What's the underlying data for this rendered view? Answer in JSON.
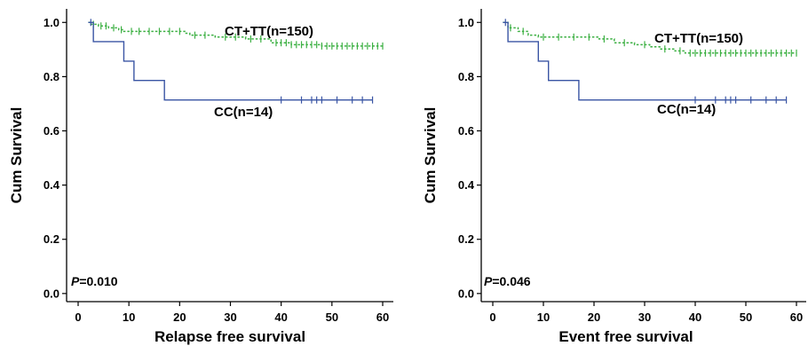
{
  "chart_data": [
    {
      "type": "line",
      "xlabel": "Relapse free survival",
      "ylabel": "Cum Survival",
      "xlim": [
        -2,
        62
      ],
      "ylim": [
        -0.03,
        1.05
      ],
      "xticks": [
        0,
        10,
        20,
        30,
        40,
        50,
        60
      ],
      "yticks": [
        0.0,
        0.2,
        0.4,
        0.6,
        0.8,
        1.0
      ],
      "annotation": {
        "p_label": "P",
        "p_value": "=0.010"
      },
      "series": [
        {
          "name": "CT+TT(n=150)",
          "color": "#3cb043",
          "dash": true,
          "steps": [
            [
              2,
              1.0
            ],
            [
              2.5,
              0.993
            ],
            [
              4,
              0.987
            ],
            [
              6,
              0.98
            ],
            [
              8,
              0.973
            ],
            [
              9,
              0.967
            ],
            [
              21,
              0.96
            ],
            [
              22,
              0.953
            ],
            [
              27,
              0.946
            ],
            [
              33,
              0.939
            ],
            [
              38,
              0.925
            ],
            [
              42,
              0.918
            ],
            [
              48,
              0.913
            ]
          ],
          "end_x": 60,
          "censor": [
            3,
            4.5,
            5.5,
            7,
            8.5,
            10.5,
            12,
            14,
            16,
            18,
            20,
            23,
            25,
            29,
            31,
            34,
            36,
            39,
            40,
            41,
            42,
            43,
            44,
            45,
            46,
            47,
            48,
            49,
            50,
            51,
            52,
            53,
            54,
            55,
            56,
            57,
            58,
            59,
            60
          ]
        },
        {
          "name": "CC(n=14)",
          "color": "#3a55a4",
          "dash": false,
          "steps": [
            [
              2,
              1.0
            ],
            [
              3,
              0.929
            ],
            [
              9,
              0.857
            ],
            [
              11,
              0.786
            ],
            [
              17,
              0.714
            ]
          ],
          "end_x": 58,
          "censor": [
            2.5,
            40,
            44,
            46,
            47,
            48,
            51,
            54,
            56,
            58
          ]
        }
      ]
    },
    {
      "type": "line",
      "xlabel": "Event free survival",
      "ylabel": "Cum Survival",
      "xlim": [
        -2,
        62
      ],
      "ylim": [
        -0.03,
        1.05
      ],
      "xticks": [
        0,
        10,
        20,
        30,
        40,
        50,
        60
      ],
      "yticks": [
        0.0,
        0.2,
        0.4,
        0.6,
        0.8,
        1.0
      ],
      "annotation": {
        "p_label": "P",
        "p_value": "=0.046"
      },
      "series": [
        {
          "name": "CT+TT(n=150)",
          "color": "#3cb043",
          "dash": true,
          "steps": [
            [
              2,
              1.0
            ],
            [
              3,
              0.98
            ],
            [
              5,
              0.967
            ],
            [
              7,
              0.953
            ],
            [
              9,
              0.946
            ],
            [
              21,
              0.939
            ],
            [
              24,
              0.925
            ],
            [
              28,
              0.918
            ],
            [
              31,
              0.91
            ],
            [
              33,
              0.902
            ],
            [
              36,
              0.895
            ],
            [
              38,
              0.887
            ]
          ],
          "end_x": 60,
          "censor": [
            3.5,
            6,
            10,
            13,
            16,
            19,
            22,
            26,
            30,
            34,
            37,
            39,
            40,
            41,
            42,
            43,
            44,
            45,
            46,
            47,
            48,
            49,
            50,
            51,
            52,
            53,
            54,
            55,
            56,
            57,
            58,
            59,
            60
          ]
        },
        {
          "name": "CC(n=14)",
          "color": "#3a55a4",
          "dash": false,
          "steps": [
            [
              2,
              1.0
            ],
            [
              3,
              0.929
            ],
            [
              9,
              0.857
            ],
            [
              11,
              0.786
            ],
            [
              17,
              0.714
            ]
          ],
          "end_x": 58,
          "censor": [
            2.5,
            40,
            44,
            46,
            47,
            48,
            51,
            54,
            56,
            58
          ]
        }
      ]
    }
  ]
}
